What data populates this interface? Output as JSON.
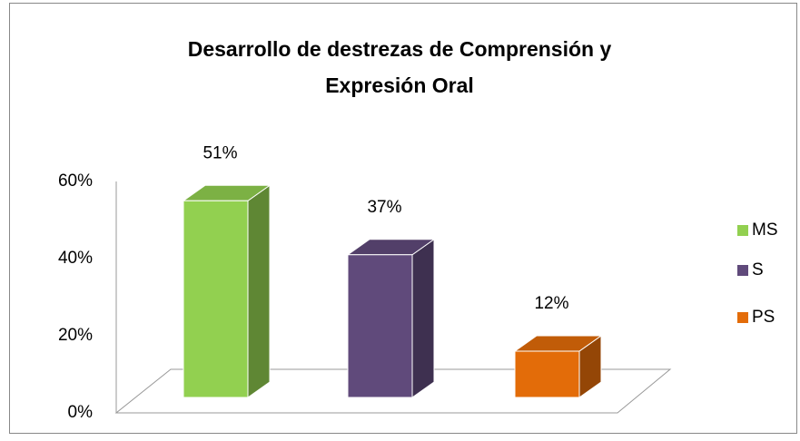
{
  "chart_data": {
    "type": "bar3d",
    "title": [
      "Desarrollo de destrezas de Comprensión y",
      "Expresión Oral"
    ],
    "categories": [
      "MS",
      "S",
      "PS"
    ],
    "values": [
      51,
      37,
      12
    ],
    "value_labels": [
      "51%",
      "37%",
      "12%"
    ],
    "colors": [
      "#92d050",
      "#604a7b",
      "#e36c09"
    ],
    "ylim": [
      0,
      60
    ],
    "yticks": [
      {
        "value": 0,
        "label": "0%"
      },
      {
        "value": 20,
        "label": "20%"
      },
      {
        "value": 40,
        "label": "40%"
      },
      {
        "value": 60,
        "label": "60%"
      }
    ],
    "legend": "right"
  }
}
